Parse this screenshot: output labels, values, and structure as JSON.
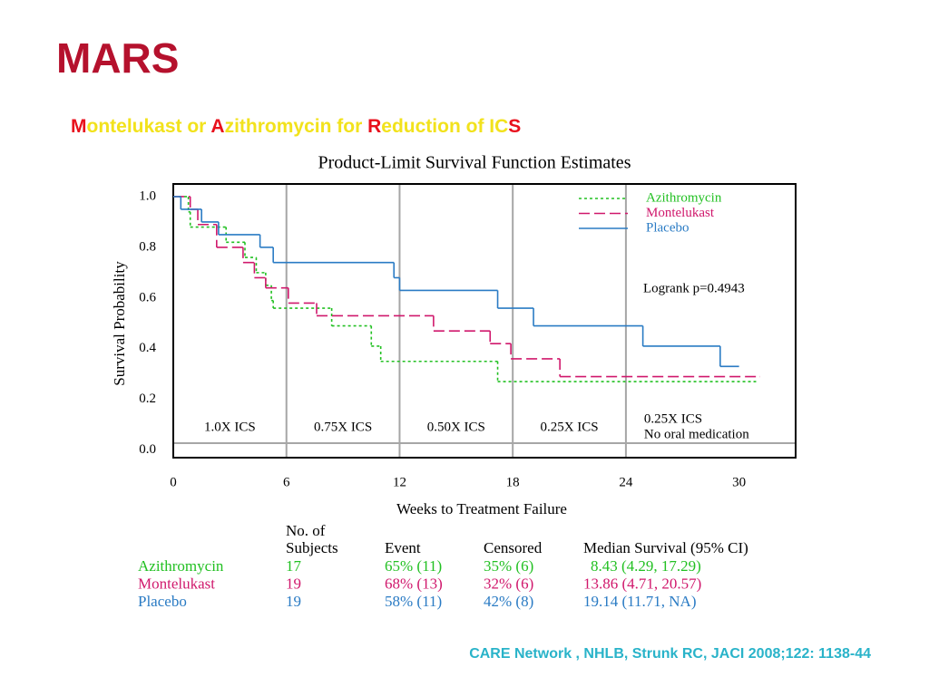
{
  "slide": {
    "title": "MARS",
    "title_color": "#b5112d",
    "subtitle_parts": [
      {
        "text": "M",
        "color": "#e8101c"
      },
      {
        "text": "ontelukast or ",
        "color": "#f2e21c"
      },
      {
        "text": "A",
        "color": "#e8101c"
      },
      {
        "text": "zithromycin for ",
        "color": "#f2e21c"
      },
      {
        "text": "R",
        "color": "#e8101c"
      },
      {
        "text": "eduction of IC",
        "color": "#f2e21c"
      },
      {
        "text": "S",
        "color": "#e8101c"
      }
    ],
    "citation": "CARE Network , NHLB, Strunk RC, JACI 2008;122: 1138-44",
    "citation_color": "#29b3c9"
  },
  "chart_data": {
    "type": "step",
    "title": "Product-Limit Survival Function Estimates",
    "x_label": "Weeks to Treatment Failure",
    "y_label": "Survival Probability",
    "xlim": [
      0,
      33
    ],
    "ylim": [
      -0.03,
      1.05
    ],
    "xticks": [
      0,
      6,
      12,
      18,
      24,
      30
    ],
    "yticks": [
      {
        "value": 0,
        "label": "0.0"
      },
      0.2,
      0.4,
      0.6,
      0.8,
      {
        "value": 1,
        "label": "1.0"
      }
    ],
    "grid": true,
    "legend": "upper right",
    "annotation": "Logrank p=0.4943",
    "phase_labels": [
      "1.0X ICS",
      "0.75X ICS",
      "0.50X ICS",
      "0.25X ICS"
    ],
    "final_phase_label": [
      "0.25X ICS",
      "No oral medication"
    ],
    "series": [
      {
        "name": "Azithromycin",
        "color": "#22c022",
        "linestyle": "dotted",
        "x": [
          0,
          0.8,
          0.9,
          2.8,
          3.8,
          4.4,
          4.9,
          5.2,
          5.3,
          8.4,
          10.5,
          11.0,
          17.2,
          30.9
        ],
        "values": [
          1.0,
          0.94,
          0.88,
          0.82,
          0.76,
          0.7,
          0.65,
          0.59,
          0.56,
          0.49,
          0.41,
          0.35,
          0.27,
          0.27
        ]
      },
      {
        "name": "Montelukast",
        "color": "#d0186c",
        "linestyle": "dashed",
        "x": [
          0,
          0.9,
          1.3,
          2.3,
          3.7,
          4.3,
          4.9,
          6.1,
          7.6,
          13.8,
          16.8,
          17.9,
          20.5,
          31.1
        ],
        "values": [
          1.0,
          0.95,
          0.89,
          0.8,
          0.74,
          0.68,
          0.64,
          0.58,
          0.53,
          0.47,
          0.42,
          0.36,
          0.29,
          0.29
        ]
      },
      {
        "name": "Placebo",
        "color": "#2a7bc4",
        "linestyle": "solid",
        "x": [
          0,
          0.4,
          1.5,
          2.4,
          4.6,
          5.3,
          11.7,
          12.0,
          17.2,
          19.1,
          24.9,
          29.0,
          30.0
        ],
        "values": [
          1.0,
          0.95,
          0.9,
          0.85,
          0.8,
          0.74,
          0.68,
          0.63,
          0.56,
          0.49,
          0.41,
          0.33,
          0.33
        ]
      }
    ]
  },
  "table": {
    "header": {
      "subjects": [
        "No. of",
        "Subjects"
      ],
      "event": "Event",
      "censored": "Censored",
      "median": "Median Survival (95% CI)"
    },
    "rows": [
      {
        "name": "Azithromycin",
        "color": "#22c022",
        "cells": [
          "17",
          "65% (11)",
          "35% (6)",
          "8.43 (4.29, 17.29)"
        ]
      },
      {
        "name": "Montelukast",
        "color": "#d0186c",
        "cells": [
          "19",
          "68% (13)",
          "32% (6)",
          "13.86 (4.71, 20.57)"
        ]
      },
      {
        "name": "Placebo",
        "color": "#2a7bc4",
        "cells": [
          "19",
          "58% (11)",
          "42% (8)",
          "19.14 (11.71, NA)"
        ]
      }
    ]
  }
}
